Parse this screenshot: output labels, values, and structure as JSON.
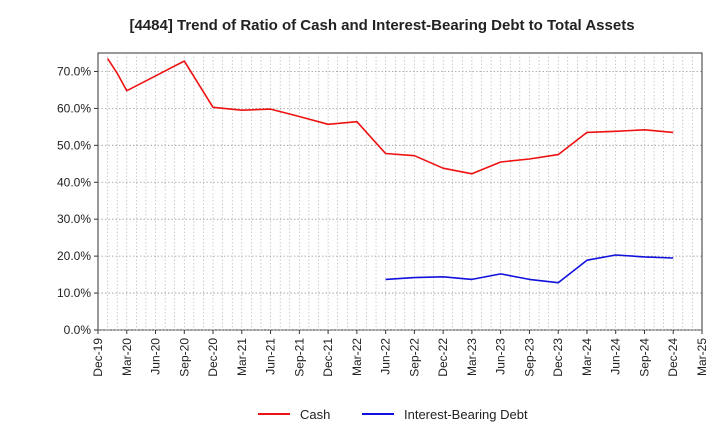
{
  "chart_data": {
    "type": "line",
    "title": "[4484]  Trend of Ratio of Cash and Interest-Bearing Debt to Total Assets",
    "xlabel": "",
    "ylabel": "",
    "ylim": [
      0,
      75
    ],
    "y_ticks": [
      "0.0%",
      "10.0%",
      "20.0%",
      "30.0%",
      "40.0%",
      "50.0%",
      "60.0%",
      "70.0%"
    ],
    "x_tick_labels": [
      "Dec-19",
      "Mar-20",
      "Jun-20",
      "Sep-20",
      "Dec-20",
      "Mar-21",
      "Jun-21",
      "Sep-21",
      "Dec-21",
      "Mar-22",
      "Jun-22",
      "Sep-22",
      "Dec-22",
      "Mar-23",
      "Jun-23",
      "Sep-23",
      "Dec-23",
      "Mar-24",
      "Jun-24",
      "Sep-24",
      "Dec-24",
      "Mar-25"
    ],
    "grid": true,
    "legend_position": "bottom",
    "series": [
      {
        "name": "Cash",
        "color": "#ee1111",
        "points": [
          {
            "x": "Jan-20",
            "y": 73.5
          },
          {
            "x": "Feb-20",
            "y": 69.5
          },
          {
            "x": "Mar-20",
            "y": 64.8
          },
          {
            "x": "Jun-20",
            "y": 68.8
          },
          {
            "x": "Aug-20",
            "y": 71.5
          },
          {
            "x": "Sep-20",
            "y": 72.8
          },
          {
            "x": "Dec-20",
            "y": 60.3
          },
          {
            "x": "Mar-21",
            "y": 59.5
          },
          {
            "x": "Jun-21",
            "y": 59.8
          },
          {
            "x": "Sep-21",
            "y": 57.8
          },
          {
            "x": "Dec-21",
            "y": 55.7
          },
          {
            "x": "Mar-22",
            "y": 56.4
          },
          {
            "x": "Jun-22",
            "y": 47.8
          },
          {
            "x": "Sep-22",
            "y": 47.2
          },
          {
            "x": "Dec-22",
            "y": 43.8
          },
          {
            "x": "Mar-23",
            "y": 42.3
          },
          {
            "x": "Jun-23",
            "y": 45.5
          },
          {
            "x": "Sep-23",
            "y": 46.3
          },
          {
            "x": "Dec-23",
            "y": 47.5
          },
          {
            "x": "Mar-24",
            "y": 53.5
          },
          {
            "x": "Jun-24",
            "y": 53.8
          },
          {
            "x": "Sep-24",
            "y": 54.2
          },
          {
            "x": "Dec-24",
            "y": 53.5
          }
        ]
      },
      {
        "name": "Interest-Bearing Debt",
        "color": "#1111dd",
        "points": [
          {
            "x": "Jun-22",
            "y": 13.7
          },
          {
            "x": "Sep-22",
            "y": 14.2
          },
          {
            "x": "Dec-22",
            "y": 14.4
          },
          {
            "x": "Mar-23",
            "y": 13.7
          },
          {
            "x": "Jun-23",
            "y": 15.2
          },
          {
            "x": "Sep-23",
            "y": 13.7
          },
          {
            "x": "Dec-23",
            "y": 12.8
          },
          {
            "x": "Mar-24",
            "y": 18.9
          },
          {
            "x": "Jun-24",
            "y": 20.3
          },
          {
            "x": "Sep-24",
            "y": 19.8
          },
          {
            "x": "Dec-24",
            "y": 19.5
          }
        ]
      }
    ]
  }
}
